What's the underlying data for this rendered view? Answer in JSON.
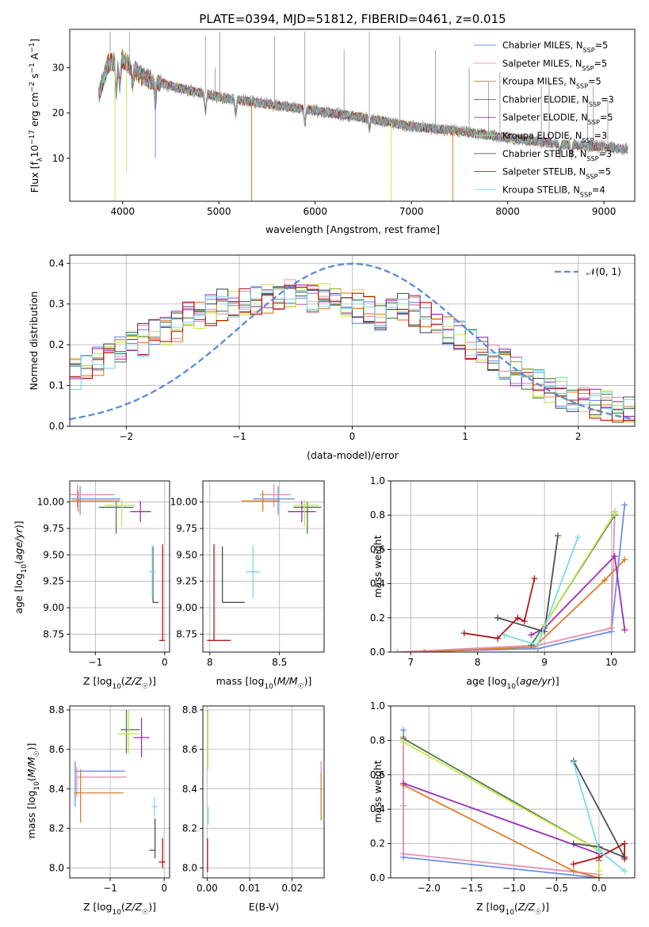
{
  "colors": {
    "Chabrier MILES": "#6a8ee8",
    "Salpeter MILES": "#e58fb0",
    "Kroupa MILES": "#e07b28",
    "Chabrier ELODIE": "#4c7a4c",
    "Salpeter ELODIE": "#9b30b8",
    "Kroupa ELODIE": "#c6e84c",
    "Chabrier STELIB": "#505050",
    "Salpeter STELIB": "#b01818",
    "Kroupa STELIB": "#7dd8e0"
  },
  "chart_data": [
    {
      "id": "spectrum",
      "type": "line",
      "title": "PLATE=0394, MJD=51812, FIBERID=0461, z=0.015",
      "xlabel": "wavelength [Angstrom, rest frame]",
      "ylabel_parts": [
        "Flux [f",
        "λ",
        "10",
        "−17",
        " erg cm",
        "−2",
        " s",
        "−1",
        " A",
        "−1",
        "]"
      ],
      "xlim": [
        3450,
        9320
      ],
      "ylim": [
        0.5,
        38.5
      ],
      "xticks": [
        4000,
        5000,
        6000,
        7000,
        8000,
        9000
      ],
      "yticks": [
        10,
        20,
        30
      ],
      "grid": false,
      "legend_position": "top-right",
      "legend": [
        {
          "label": "Chabrier MILES, N",
          "sub": "SSP",
          "suffix": "=5"
        },
        {
          "label": "Salpeter MILES, N",
          "sub": "SSP",
          "suffix": "=5"
        },
        {
          "label": "Kroupa MILES, N",
          "sub": "SSP",
          "suffix": "=5"
        },
        {
          "label": "Chabrier ELODIE, N",
          "sub": "SSP",
          "suffix": "=3"
        },
        {
          "label": "Salpeter ELODIE, N",
          "sub": "SSP",
          "suffix": "=5"
        },
        {
          "label": "Kroupa ELODIE, N",
          "sub": "SSP",
          "suffix": "=3"
        },
        {
          "label": "Chabrier STELIB, N",
          "sub": "SSP",
          "suffix": "=3"
        },
        {
          "label": "Salpeter STELIB, N",
          "sub": "SSP",
          "suffix": "=5"
        },
        {
          "label": "Kroupa STELIB, N",
          "sub": "SSP",
          "suffix": "=4"
        }
      ],
      "continuum_x": [
        3750,
        3850,
        4000,
        4200,
        4500,
        5000,
        5500,
        6000,
        6500,
        7000,
        7500,
        8000,
        8500,
        9000,
        9250
      ],
      "continuum_y": [
        24,
        31,
        32,
        28,
        26,
        23.5,
        22,
        20.5,
        19,
        17,
        16,
        14.5,
        13.2,
        12.5,
        12
      ]
    },
    {
      "id": "residuals",
      "type": "step",
      "xlabel": "(data-model)/error",
      "ylabel": "Normed distribution",
      "xlim": [
        -2.5,
        2.5
      ],
      "ylim": [
        0,
        0.42
      ],
      "xticks": [
        -2,
        -1,
        0,
        1,
        2
      ],
      "yticks": [
        0.0,
        0.1,
        0.2,
        0.3,
        0.4
      ],
      "grid": true,
      "legend_position": "top-right",
      "legend": {
        "label": "𝒩(0, 1)"
      }
    },
    {
      "id": "age-vs-Z",
      "type": "scatter",
      "xlabel": "Z [log10(Z/Z☉)]",
      "ylabel": "age  [log10(age/yr)]",
      "xlim": [
        -1.37,
        0.07
      ],
      "ylim": [
        8.58,
        10.2
      ],
      "xticks": [
        -1,
        0
      ],
      "yticks": [
        8.75,
        9.0,
        9.25,
        9.5,
        9.75,
        10.0
      ],
      "grid": true,
      "points": [
        {
          "s": "Chabrier MILES",
          "x": -1.22,
          "y": 10.03,
          "xerr": [
            0.13,
            0.58
          ],
          "yerr": [
            0.15,
            0.12
          ]
        },
        {
          "s": "Salpeter MILES",
          "x": -1.26,
          "y": 10.07,
          "xerr": [
            0.1,
            0.54
          ],
          "yerr": [
            0.12,
            0.1
          ]
        },
        {
          "s": "Kroupa MILES",
          "x": -1.25,
          "y": 10.01,
          "xerr": [
            0.1,
            0.6
          ],
          "yerr": [
            0.1,
            0.1
          ]
        },
        {
          "s": "Chabrier ELODIE",
          "x": -0.7,
          "y": 9.95,
          "xerr": [
            0.25,
            0.25
          ],
          "yerr": [
            0.25,
            0.05
          ]
        },
        {
          "s": "Salpeter ELODIE",
          "x": -0.35,
          "y": 9.91,
          "xerr": [
            0.15,
            0.15
          ],
          "yerr": [
            0.1,
            0.1
          ]
        },
        {
          "s": "Kroupa ELODIE",
          "x": -0.62,
          "y": 9.97,
          "xerr": [
            0.25,
            0.2
          ],
          "yerr": [
            0.2,
            0.05
          ]
        },
        {
          "s": "Chabrier STELIB",
          "x": -0.17,
          "y": 9.05,
          "xerr": [
            0.0,
            0.08
          ],
          "yerr": [
            0.0,
            0.53
          ]
        },
        {
          "s": "Salpeter STELIB",
          "x": -0.03,
          "y": 8.69,
          "xerr": [
            0.05,
            0.03
          ],
          "yerr": [
            0.0,
            0.91
          ]
        },
        {
          "s": "Kroupa STELIB",
          "x": -0.18,
          "y": 9.34,
          "xerr": [
            0.05,
            0.05
          ],
          "yerr": [
            0.25,
            0.25
          ]
        }
      ]
    },
    {
      "id": "age-vs-mass",
      "type": "scatter",
      "xlabel": "mass [log10(M/M☉)]",
      "ylabel": "",
      "xlim": [
        7.95,
        8.82
      ],
      "ylim": [
        8.58,
        10.2
      ],
      "xticks": [
        8.0,
        8.5
      ],
      "yticks": [
        8.75,
        9.0,
        9.25,
        9.5,
        9.75,
        10.0
      ],
      "grid": true,
      "points": [
        {
          "s": "Chabrier MILES",
          "x": 8.49,
          "y": 10.03,
          "xerr": [
            0.18,
            0.12
          ],
          "yerr": [
            0.15,
            0.12
          ]
        },
        {
          "s": "Salpeter MILES",
          "x": 8.46,
          "y": 10.07,
          "xerr": [
            0.1,
            0.12
          ],
          "yerr": [
            0.12,
            0.1
          ]
        },
        {
          "s": "Kroupa MILES",
          "x": 8.38,
          "y": 10.01,
          "xerr": [
            0.15,
            0.12
          ],
          "yerr": [
            0.1,
            0.1
          ]
        },
        {
          "s": "Chabrier ELODIE",
          "x": 8.7,
          "y": 9.95,
          "xerr": [
            0.1,
            0.1
          ],
          "yerr": [
            0.25,
            0.05
          ]
        },
        {
          "s": "Salpeter ELODIE",
          "x": 8.66,
          "y": 9.91,
          "xerr": [
            0.1,
            0.1
          ],
          "yerr": [
            0.1,
            0.1
          ]
        },
        {
          "s": "Kroupa ELODIE",
          "x": 8.68,
          "y": 9.97,
          "xerr": [
            0.08,
            0.1
          ],
          "yerr": [
            0.2,
            0.05
          ]
        },
        {
          "s": "Chabrier STELIB",
          "x": 8.09,
          "y": 9.05,
          "xerr": [
            0.0,
            0.16
          ],
          "yerr": [
            0.0,
            0.53
          ]
        },
        {
          "s": "Salpeter STELIB",
          "x": 8.03,
          "y": 8.69,
          "xerr": [
            0.05,
            0.12
          ],
          "yerr": [
            0.0,
            0.91
          ]
        },
        {
          "s": "Kroupa STELIB",
          "x": 8.31,
          "y": 9.34,
          "xerr": [
            0.05,
            0.05
          ],
          "yerr": [
            0.25,
            0.25
          ]
        }
      ]
    },
    {
      "id": "weight-vs-age",
      "type": "line",
      "xlabel": "age  [log10(age/yr)]",
      "ylabel": "mass weight",
      "xlim": [
        6.7,
        10.35
      ],
      "ylim": [
        0,
        1.0
      ],
      "xticks": [
        7,
        8,
        9,
        10
      ],
      "yticks": [
        0.0,
        0.2,
        0.4,
        0.6,
        0.8,
        1.0
      ],
      "grid": true,
      "series": [
        {
          "s": "Chabrier MILES",
          "x": [
            6.8,
            8.9,
            10.0,
            10.2
          ],
          "y": [
            0.0,
            0.02,
            0.12,
            0.86
          ]
        },
        {
          "s": "Salpeter MILES",
          "x": [
            6.8,
            8.9,
            10.0,
            10.05
          ],
          "y": [
            0.0,
            0.04,
            0.14,
            0.82
          ]
        },
        {
          "s": "Kroupa MILES",
          "x": [
            7.2,
            8.85,
            9.9,
            10.2
          ],
          "y": [
            0.0,
            0.03,
            0.42,
            0.54
          ]
        },
        {
          "s": "Chabrier ELODIE",
          "x": [
            8.8,
            9.0,
            10.05
          ],
          "y": [
            0.04,
            0.16,
            0.8
          ]
        },
        {
          "s": "Salpeter ELODIE",
          "x": [
            8.8,
            9.0,
            10.05,
            10.2
          ],
          "y": [
            0.1,
            0.14,
            0.56,
            0.13
          ]
        },
        {
          "s": "Kroupa ELODIE",
          "x": [
            8.9,
            9.0,
            10.05
          ],
          "y": [
            0.04,
            0.16,
            0.81
          ]
        },
        {
          "s": "Chabrier STELIB",
          "x": [
            8.3,
            9.0,
            9.2
          ],
          "y": [
            0.2,
            0.12,
            0.68
          ]
        },
        {
          "s": "Salpeter STELIB",
          "x": [
            7.8,
            8.3,
            8.6,
            8.7,
            8.85
          ],
          "y": [
            0.11,
            0.08,
            0.2,
            0.18,
            0.43
          ]
        },
        {
          "s": "Kroupa STELIB",
          "x": [
            8.4,
            8.9,
            9.5
          ],
          "y": [
            0.1,
            0.04,
            0.67
          ]
        }
      ]
    },
    {
      "id": "mass-vs-Z",
      "type": "scatter",
      "xlabel": "Z [log10(Z/Z☉)]",
      "ylabel": "mass [log10(M/M☉)]",
      "xlim": [
        -1.75,
        0.1
      ],
      "ylim": [
        7.95,
        8.82
      ],
      "xticks": [
        -1,
        0
      ],
      "yticks": [
        8.0,
        8.2,
        8.4,
        8.6,
        8.8
      ],
      "grid": true,
      "points": [
        {
          "s": "Chabrier MILES",
          "x": -1.65,
          "y": 8.49,
          "xerr": [
            0.0,
            0.92
          ],
          "yerr": [
            0.18,
            0.05
          ]
        },
        {
          "s": "Salpeter MILES",
          "x": -1.62,
          "y": 8.46,
          "xerr": [
            0.0,
            0.92
          ],
          "yerr": [
            0.1,
            0.05
          ]
        },
        {
          "s": "Kroupa MILES",
          "x": -1.55,
          "y": 8.38,
          "xerr": [
            0.12,
            0.8
          ],
          "yerr": [
            0.15,
            0.12
          ]
        },
        {
          "s": "Chabrier ELODIE",
          "x": -0.7,
          "y": 8.7,
          "xerr": [
            0.1,
            0.25
          ],
          "yerr": [
            0.12,
            0.1
          ]
        },
        {
          "s": "Salpeter ELODIE",
          "x": -0.42,
          "y": 8.66,
          "xerr": [
            0.15,
            0.15
          ],
          "yerr": [
            0.1,
            0.1
          ]
        },
        {
          "s": "Kroupa ELODIE",
          "x": -0.66,
          "y": 8.68,
          "xerr": [
            0.2,
            0.2
          ],
          "yerr": [
            0.1,
            0.12
          ]
        },
        {
          "s": "Chabrier STELIB",
          "x": -0.17,
          "y": 8.09,
          "xerr": [
            0.1,
            0.0
          ],
          "yerr": [
            0.04,
            0.16
          ]
        },
        {
          "s": "Salpeter STELIB",
          "x": -0.03,
          "y": 8.03,
          "xerr": [
            0.07,
            0.05
          ],
          "yerr": [
            0.03,
            0.12
          ]
        },
        {
          "s": "Kroupa STELIB",
          "x": -0.18,
          "y": 8.31,
          "xerr": [
            0.05,
            0.05
          ],
          "yerr": [
            0.05,
            0.05
          ]
        }
      ]
    },
    {
      "id": "mass-vs-ebv",
      "type": "scatter",
      "xlabel": "E(B-V)",
      "ylabel": "",
      "xlim": [
        -0.001,
        0.0275
      ],
      "ylim": [
        7.95,
        8.82
      ],
      "xticks": [
        0.0,
        0.01,
        0.02
      ],
      "xticklabels": [
        "0.00",
        "0.01",
        "0.02"
      ],
      "yticks": [
        8.0,
        8.2,
        8.4,
        8.6,
        8.8
      ],
      "grid": true,
      "points": [
        {
          "s": "Kroupa ELODIE",
          "x": 0.0002,
          "y": 8.68,
          "xerr": [
            0,
            0
          ],
          "yerr": [
            0.18,
            0.12
          ]
        },
        {
          "s": "Salpeter STELIB",
          "x": 0.0001,
          "y": 8.03,
          "xerr": [
            0,
            0
          ],
          "yerr": [
            0.05,
            0.12
          ]
        },
        {
          "s": "Kroupa STELIB",
          "x": 0.0003,
          "y": 8.28,
          "xerr": [
            0,
            0
          ],
          "yerr": [
            0.06,
            0.03
          ]
        },
        {
          "s": "Salpeter MILES",
          "x": 0.0268,
          "y": 8.46,
          "xerr": [
            0,
            0
          ],
          "yerr": [
            0.0,
            0.08
          ]
        },
        {
          "s": "Kroupa MILES",
          "x": 0.0268,
          "y": 8.36,
          "xerr": [
            0,
            0
          ],
          "yerr": [
            0.12,
            0.12
          ]
        }
      ]
    },
    {
      "id": "weight-vs-Z",
      "type": "line",
      "xlabel": "Z [log10(Z/Z☉)]",
      "ylabel": "mass weight",
      "xlim": [
        -2.45,
        0.42
      ],
      "ylim": [
        0,
        1.0
      ],
      "xticks": [
        -2.0,
        -1.5,
        -1.0,
        -0.5,
        0.0
      ],
      "xticklabels": [
        "−2.0",
        "−1.5",
        "−1.0",
        "−0.5",
        "0.0"
      ],
      "yticks": [
        0.0,
        0.2,
        0.4,
        0.6,
        0.8,
        1.0
      ],
      "grid": true,
      "series": [
        {
          "s": "Chabrier MILES",
          "x": [
            -2.3,
            -2.3,
            0.0
          ],
          "y": [
            0.86,
            0.12,
            0.0
          ]
        },
        {
          "s": "Salpeter MILES",
          "x": [
            -2.3,
            -2.3,
            -2.3,
            0.0
          ],
          "y": [
            0.82,
            0.42,
            0.14,
            0.02
          ]
        },
        {
          "s": "Kroupa MILES",
          "x": [
            -2.3,
            -0.3,
            0.0
          ],
          "y": [
            0.54,
            0.04,
            0.0
          ]
        },
        {
          "s": "Chabrier ELODIE",
          "x": [
            -2.3,
            0.0
          ],
          "y": [
            0.81,
            0.16
          ]
        },
        {
          "s": "Salpeter ELODIE",
          "x": [
            -2.3,
            0.0,
            0.0
          ],
          "y": [
            0.55,
            0.14,
            0.1
          ]
        },
        {
          "s": "Kroupa ELODIE",
          "x": [
            -2.3,
            0.0,
            0.0
          ],
          "y": [
            0.79,
            0.16,
            0.04
          ]
        },
        {
          "s": "Chabrier STELIB",
          "x": [
            -0.3,
            0.3,
            0.0,
            -0.3
          ],
          "y": [
            0.68,
            0.12,
            0.18,
            0.2
          ]
        },
        {
          "s": "Salpeter STELIB",
          "x": [
            -0.3,
            0.0,
            0.3,
            0.3
          ],
          "y": [
            0.08,
            0.12,
            0.2,
            0.11
          ]
        },
        {
          "s": "Kroupa STELIB",
          "x": [
            -0.3,
            0.0,
            0.3
          ],
          "y": [
            0.67,
            0.16,
            0.04
          ]
        }
      ]
    }
  ]
}
